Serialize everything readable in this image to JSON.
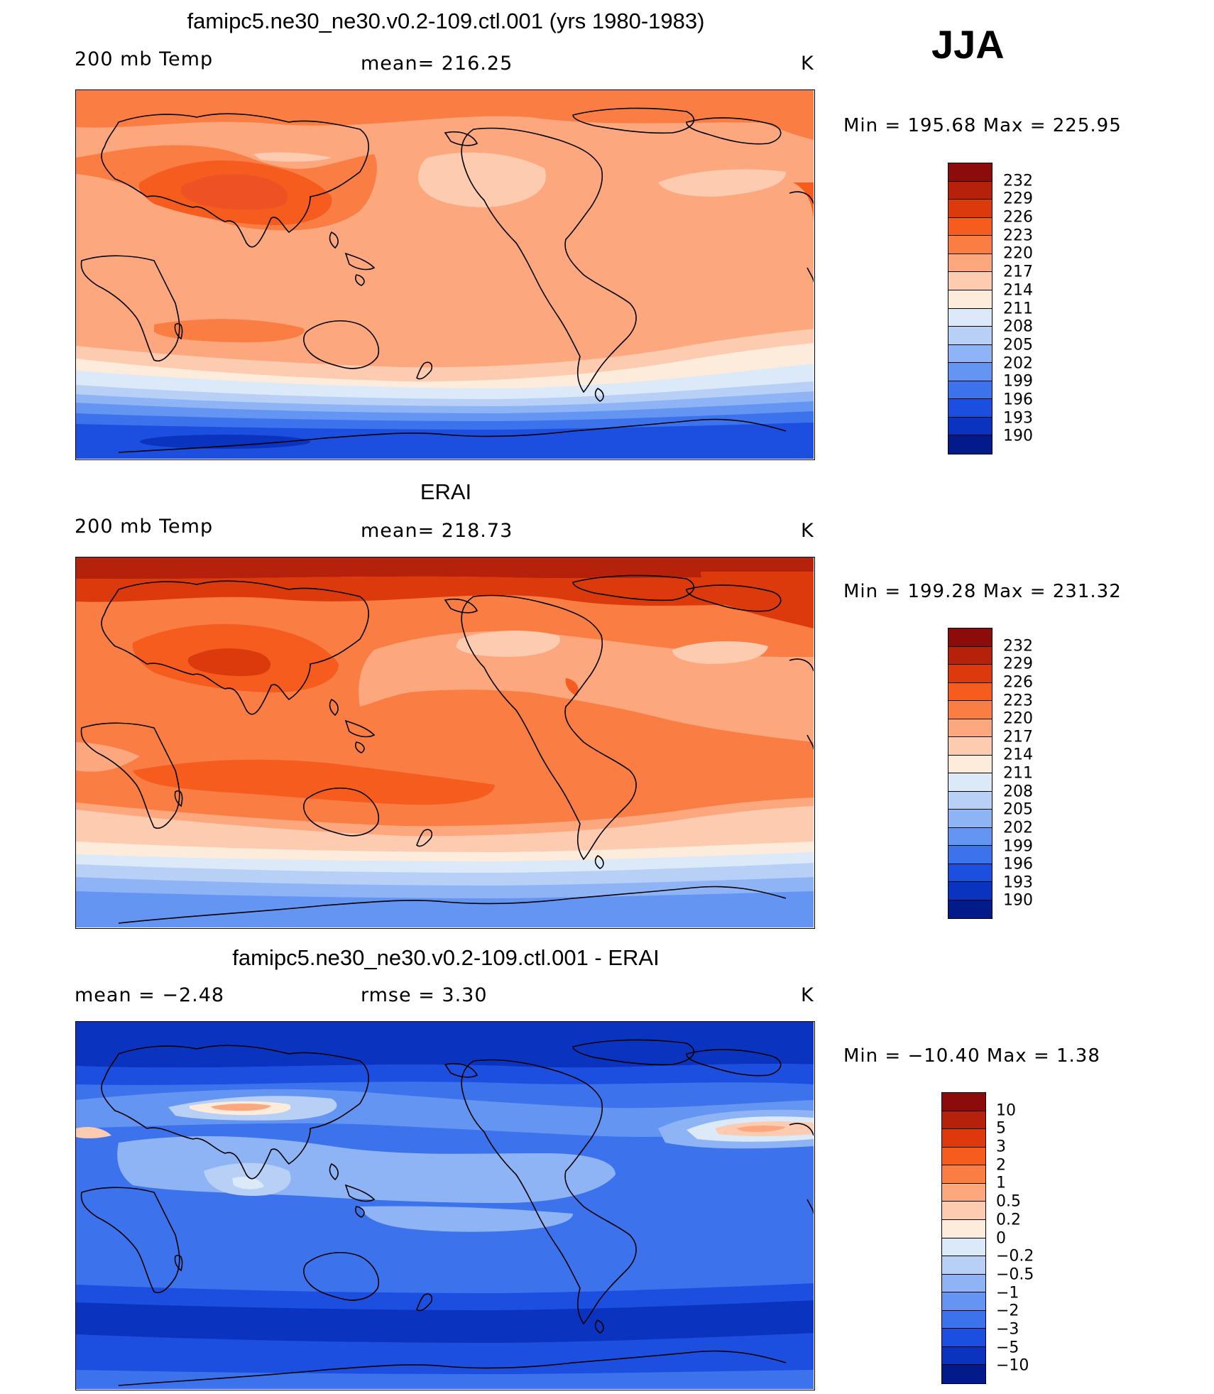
{
  "season": "JJA",
  "units": "K",
  "panels": [
    {
      "id": "model",
      "title": "famipc5.ne30_ne30.v0.2-109.ctl.001 (yrs 1980-1983)",
      "left_label": "200 mb Temp",
      "center_label": "mean= 216.25",
      "units": "K",
      "minmax": "Min  =  195.68  Max  =  225.95",
      "levels": [
        "232",
        "229",
        "226",
        "223",
        "220",
        "217",
        "214",
        "211",
        "208",
        "205",
        "202",
        "199",
        "196",
        "193",
        "190"
      ],
      "colors": [
        "#8c0c0c",
        "#b5210a",
        "#dc3a0c",
        "#f55c1e",
        "#fa7d44",
        "#fca77e",
        "#fdcbb0",
        "#fdebdb",
        "#dbe9f9",
        "#b8d0f6",
        "#8fb4f6",
        "#6495f2",
        "#3c72eb",
        "#1c4ee0",
        "#0a33bf",
        "#031b8a"
      ]
    },
    {
      "id": "obs",
      "title": "ERAI",
      "left_label": "200 mb Temp",
      "center_label": "mean= 218.73",
      "units": "K",
      "minmax": "Min  =  199.28  Max  =  231.32",
      "levels": [
        "232",
        "229",
        "226",
        "223",
        "220",
        "217",
        "214",
        "211",
        "208",
        "205",
        "202",
        "199",
        "196",
        "193",
        "190"
      ],
      "colors": [
        "#8c0c0c",
        "#b5210a",
        "#dc3a0c",
        "#f55c1e",
        "#fa7d44",
        "#fca77e",
        "#fdcbb0",
        "#fdebdb",
        "#dbe9f9",
        "#b8d0f6",
        "#8fb4f6",
        "#6495f2",
        "#3c72eb",
        "#1c4ee0",
        "#0a33bf",
        "#031b8a"
      ]
    },
    {
      "id": "diff",
      "title": "famipc5.ne30_ne30.v0.2-109.ctl.001 - ERAI",
      "left_label": "mean  =     −2.48",
      "center_label": "rmse  =      3.30",
      "units": "K",
      "minmax": "Min  =  −10.40  Max  =      1.38",
      "levels": [
        "10",
        "5",
        "3",
        "2",
        "1",
        "0.5",
        "0.2",
        "0",
        "−0.2",
        "−0.5",
        "−1",
        "−2",
        "−3",
        "−5",
        "−10"
      ],
      "colors": [
        "#8c0c0c",
        "#b5210a",
        "#dc3a0c",
        "#f55c1e",
        "#fa7d44",
        "#fca77e",
        "#fdcbb0",
        "#fdebdb",
        "#dbe9f9",
        "#b8d0f6",
        "#8fb4f6",
        "#6495f2",
        "#3c72eb",
        "#1c4ee0",
        "#0a33bf",
        "#031b8a"
      ]
    }
  ]
}
